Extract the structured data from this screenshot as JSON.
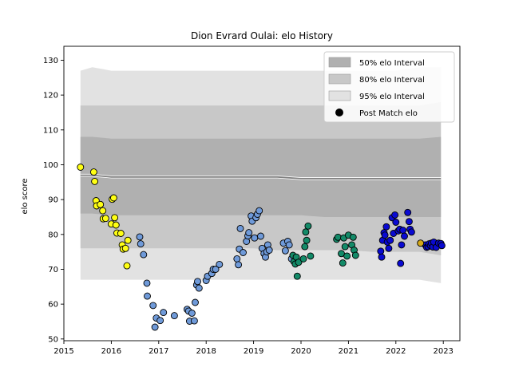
{
  "chart_data": {
    "type": "scatter",
    "title": "Dion Evrard Oulai: elo History",
    "xlabel": "",
    "ylabel": "elo score",
    "xlim": [
      2015.0,
      2023.35
    ],
    "ylim": [
      49.5,
      134
    ],
    "x_ticks": [
      "2015",
      "2016",
      "2017",
      "2018",
      "2019",
      "2020",
      "2021",
      "2022",
      "2023"
    ],
    "y_ticks": [
      "50",
      "60",
      "70",
      "80",
      "90",
      "100",
      "110",
      "120",
      "130"
    ],
    "grid": false,
    "legend_position": "top-right",
    "legend": [
      {
        "label": "50% elo Interval",
        "color": "#b0b0b0",
        "kind": "band"
      },
      {
        "label": "80% elo Interval",
        "color": "#c8c8c8",
        "kind": "band"
      },
      {
        "label": "95% elo Interval",
        "color": "#e2e2e2",
        "kind": "band"
      },
      {
        "label": "Post Match elo",
        "color": "#000000",
        "kind": "marker"
      }
    ],
    "bands": {
      "x": [
        2015.35,
        2015.6,
        2016.0,
        2016.5,
        2017.0,
        2017.5,
        2018.0,
        2018.5,
        2019.0,
        2019.5,
        2020.0,
        2020.5,
        2021.0,
        2021.5,
        2022.0,
        2022.5,
        2022.95
      ],
      "p95_upper": [
        127,
        128,
        127,
        127,
        127,
        127,
        127,
        127,
        127,
        127,
        127,
        127,
        127,
        127,
        127,
        128,
        128
      ],
      "p80_upper": [
        117,
        117,
        117,
        117,
        117,
        117,
        117,
        117,
        117,
        117,
        117,
        117,
        117,
        117,
        117,
        117,
        118
      ],
      "p50_upper": [
        108,
        108,
        107.5,
        107.5,
        107.5,
        107.5,
        107.5,
        107.5,
        107.5,
        107.5,
        107.5,
        107.5,
        107.5,
        107.5,
        107.5,
        107.5,
        108
      ],
      "median": [
        97,
        97,
        96.5,
        96.5,
        96.5,
        96.5,
        96.5,
        96.5,
        96.5,
        96.5,
        96,
        96,
        96,
        96,
        96,
        96,
        96
      ],
      "p50_lower": [
        86,
        86,
        85.5,
        85.5,
        85.5,
        85.5,
        85.5,
        85.5,
        85.5,
        85.5,
        85.5,
        85,
        85,
        85,
        85,
        85,
        85
      ],
      "p80_lower": [
        76,
        76,
        76,
        76,
        76,
        76,
        76,
        76,
        76,
        75.5,
        75.5,
        75.5,
        75.5,
        75,
        75,
        75,
        74
      ],
      "p95_lower": [
        67,
        67,
        67,
        67,
        67,
        67,
        67,
        67,
        67,
        67,
        67,
        67,
        67,
        67,
        67,
        67,
        66
      ]
    },
    "series": [
      {
        "color": "#ffff14",
        "points": [
          [
            2015.35,
            99.3
          ],
          [
            2015.63,
            97.9
          ],
          [
            2015.65,
            95.2
          ],
          [
            2015.68,
            89.7
          ],
          [
            2015.69,
            88.2
          ],
          [
            2015.77,
            88.6
          ],
          [
            2015.82,
            86.8
          ],
          [
            2015.83,
            84.5
          ],
          [
            2015.88,
            84.6
          ],
          [
            2016.0,
            83.0
          ],
          [
            2016.02,
            90.1
          ],
          [
            2016.05,
            90.5
          ],
          [
            2016.07,
            84.8
          ],
          [
            2016.1,
            82.7
          ],
          [
            2016.12,
            80.4
          ],
          [
            2016.2,
            80.3
          ],
          [
            2016.23,
            77.0
          ],
          [
            2016.25,
            75.8
          ],
          [
            2016.3,
            76.0
          ],
          [
            2016.33,
            71.0
          ],
          [
            2016.35,
            78.3
          ]
        ]
      },
      {
        "color": "#6f9ad9",
        "points": [
          [
            2016.6,
            79.3
          ],
          [
            2016.62,
            77.3
          ],
          [
            2016.68,
            74.2
          ],
          [
            2016.75,
            66.0
          ],
          [
            2016.76,
            62.3
          ],
          [
            2016.88,
            59.6
          ],
          [
            2016.92,
            53.4
          ],
          [
            2016.95,
            56.0
          ],
          [
            2017.03,
            55.3
          ],
          [
            2017.1,
            57.6
          ],
          [
            2017.33,
            56.7
          ],
          [
            2017.6,
            58.5
          ],
          [
            2017.63,
            58.0
          ],
          [
            2017.65,
            55.1
          ],
          [
            2017.7,
            57.4
          ],
          [
            2017.75,
            55.2
          ],
          [
            2017.77,
            60.5
          ],
          [
            2017.8,
            65.5
          ],
          [
            2017.82,
            66.5
          ],
          [
            2017.85,
            64.6
          ],
          [
            2018.0,
            66.8
          ],
          [
            2018.03,
            68.0
          ],
          [
            2018.12,
            68.8
          ],
          [
            2018.15,
            70.0
          ],
          [
            2018.2,
            70.0
          ],
          [
            2018.28,
            71.4
          ],
          [
            2018.65,
            73.0
          ],
          [
            2018.68,
            71.3
          ],
          [
            2018.7,
            75.8
          ],
          [
            2018.72,
            81.7
          ],
          [
            2018.78,
            74.8
          ],
          [
            2018.85,
            78.0
          ],
          [
            2018.88,
            79.6
          ],
          [
            2018.9,
            80.5
          ],
          [
            2018.95,
            85.3
          ],
          [
            2018.97,
            83.8
          ],
          [
            2019.02,
            79.0
          ],
          [
            2019.05,
            84.8
          ],
          [
            2019.08,
            85.8
          ],
          [
            2019.12,
            86.8
          ],
          [
            2019.15,
            79.5
          ],
          [
            2019.18,
            76.0
          ],
          [
            2019.22,
            74.5
          ],
          [
            2019.25,
            73.5
          ],
          [
            2019.28,
            75.0
          ],
          [
            2019.3,
            77.0
          ],
          [
            2019.33,
            75.5
          ],
          [
            2019.63,
            77.5
          ],
          [
            2019.67,
            75.3
          ],
          [
            2019.72,
            78.0
          ],
          [
            2019.75,
            77.0
          ],
          [
            2019.8,
            73.0
          ]
        ]
      },
      {
        "color": "#138a68",
        "points": [
          [
            2019.83,
            74.0
          ],
          [
            2019.85,
            72.2
          ],
          [
            2019.88,
            71.5
          ],
          [
            2019.9,
            73.5
          ],
          [
            2019.92,
            68.0
          ],
          [
            2019.95,
            72.0
          ],
          [
            2020.05,
            73.0
          ],
          [
            2020.08,
            76.5
          ],
          [
            2020.1,
            80.7
          ],
          [
            2020.12,
            78.3
          ],
          [
            2020.15,
            82.4
          ],
          [
            2020.2,
            73.8
          ],
          [
            2020.75,
            78.6
          ],
          [
            2020.78,
            79.2
          ],
          [
            2020.85,
            74.5
          ],
          [
            2020.88,
            71.8
          ],
          [
            2020.9,
            79.0
          ],
          [
            2020.93,
            76.5
          ],
          [
            2020.97,
            73.8
          ],
          [
            2021.0,
            79.8
          ],
          [
            2021.07,
            77.0
          ],
          [
            2021.1,
            79.2
          ],
          [
            2021.12,
            75.5
          ],
          [
            2021.15,
            74.0
          ]
        ]
      },
      {
        "color": "#0a0ad2",
        "points": [
          [
            2021.68,
            75.2
          ],
          [
            2021.7,
            73.5
          ],
          [
            2021.72,
            78.3
          ],
          [
            2021.75,
            80.5
          ],
          [
            2021.77,
            79.8
          ],
          [
            2021.8,
            82.2
          ],
          [
            2021.82,
            77.8
          ],
          [
            2021.85,
            76.0
          ],
          [
            2021.88,
            78.3
          ],
          [
            2021.92,
            84.8
          ],
          [
            2021.95,
            80.3
          ],
          [
            2021.98,
            85.6
          ],
          [
            2022.0,
            83.5
          ],
          [
            2022.05,
            81.0
          ],
          [
            2022.08,
            81.5
          ],
          [
            2022.1,
            71.7
          ],
          [
            2022.12,
            77.0
          ],
          [
            2022.15,
            81.2
          ],
          [
            2022.18,
            79.5
          ],
          [
            2022.25,
            86.3
          ],
          [
            2022.28,
            83.7
          ],
          [
            2022.3,
            81.5
          ],
          [
            2022.33,
            80.7
          ],
          [
            2022.62,
            77.0
          ],
          [
            2022.65,
            76.3
          ],
          [
            2022.68,
            76.5
          ],
          [
            2022.7,
            77.3
          ],
          [
            2022.73,
            76.8
          ],
          [
            2022.75,
            77.5
          ],
          [
            2022.78,
            76.4
          ],
          [
            2022.8,
            77.8
          ],
          [
            2022.85,
            76.3
          ],
          [
            2022.9,
            77.5
          ],
          [
            2022.95,
            77.4
          ],
          [
            2022.97,
            76.8
          ]
        ]
      },
      {
        "color": "#d4a818",
        "points": [
          [
            2022.52,
            77.5
          ]
        ]
      }
    ]
  }
}
